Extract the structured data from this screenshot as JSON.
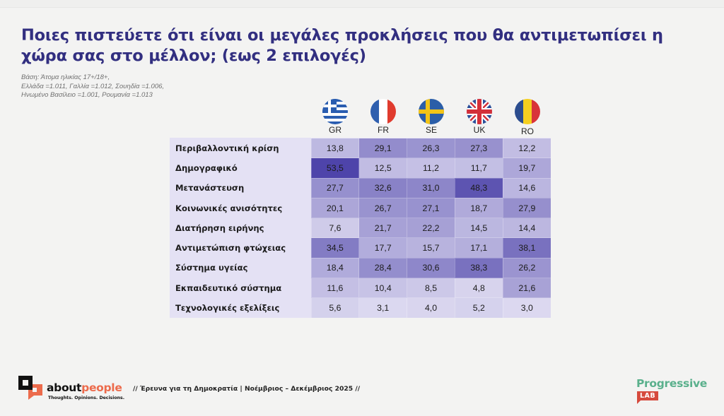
{
  "title": "Ποιες πιστεύετε ότι είναι οι μεγάλες προκλήσεις που θα αντιμετωπίσει η χώρα σας στο μέλλον; (εως 2 επιλογές)",
  "base_note": [
    "Βάση: Άτομα ηλικίας 17+/18+,",
    "Ελλάδα =1.011, Γαλλία =1.012, Σουηδία =1.006,",
    "Ηνωμένο Βασίλειο =1.001, Ρουμανία =1.013"
  ],
  "colors": {
    "title": "#322f80",
    "heat_low": "#e4e1f4",
    "heat_high": "#4a40a8"
  },
  "chart_data": {
    "type": "heatmap",
    "title": "Ποιες πιστεύετε ότι είναι οι μεγάλες προκλήσεις που θα αντιμετωπίσει η χώρα σας στο μέλλον; (εως 2 επιλογές)",
    "columns": [
      {
        "code": "GR",
        "flag": "greece-flag-icon"
      },
      {
        "code": "FR",
        "flag": "france-flag-icon"
      },
      {
        "code": "SE",
        "flag": "sweden-flag-icon"
      },
      {
        "code": "UK",
        "flag": "uk-flag-icon"
      },
      {
        "code": "RO",
        "flag": "romania-flag-icon"
      }
    ],
    "rows": [
      {
        "label": "Περιβαλλοντική κρίση",
        "values": [
          "13,8",
          "29,1",
          "26,3",
          "27,3",
          "12,2"
        ]
      },
      {
        "label": "Δημογραφικό",
        "values": [
          "53,5",
          "12,5",
          "11,2",
          "11,7",
          "19,7"
        ]
      },
      {
        "label": "Μετανάστευση",
        "values": [
          "27,7",
          "32,6",
          "31,0",
          "48,3",
          "14,6"
        ]
      },
      {
        "label": "Κοινωνικές ανισότητες",
        "values": [
          "20,1",
          "26,7",
          "27,1",
          "18,7",
          "27,9"
        ]
      },
      {
        "label": "Διατήρηση ειρήνης",
        "values": [
          "7,6",
          "21,7",
          "22,2",
          "14,5",
          "14,4"
        ]
      },
      {
        "label": "Αντιμετώπιση φτώχειας",
        "values": [
          "34,5",
          "17,7",
          "15,7",
          "17,1",
          "38,1"
        ]
      },
      {
        "label": "Σύστημα υγείας",
        "values": [
          "18,4",
          "28,4",
          "30,6",
          "38,3",
          "26,2"
        ]
      },
      {
        "label": "Εκπαιδευτικό σύστημα",
        "values": [
          "11,6",
          "10,4",
          "8,5",
          "4,8",
          "21,6"
        ]
      },
      {
        "label": "Τεχνολογικές εξελίξεις",
        "values": [
          "5,6",
          "3,1",
          "4,0",
          "5,2",
          "3,0"
        ]
      }
    ],
    "value_range": [
      0,
      55
    ]
  },
  "footer": {
    "brand_about": "about",
    "brand_people": "people",
    "brand_tagline": "Thoughts. Opinions. Decisions.",
    "survey_text": "// Έρευνα για τη Δημοκρατία | Νοέμβριος – Δεκέμβριος 2025 //",
    "partner_word": "Progressive",
    "partner_lab": "LAB"
  }
}
